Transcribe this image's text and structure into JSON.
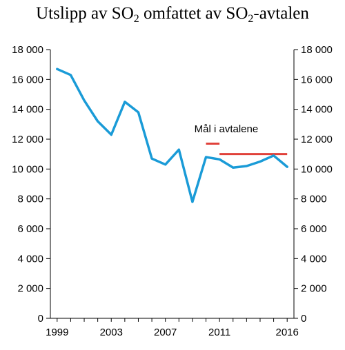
{
  "title": {
    "prefix": "Utslipp av SO",
    "sub1": "2",
    "middle": " omfattet av SO",
    "sub2": "2",
    "suffix": "-avtalen"
  },
  "chart_data": {
    "type": "line",
    "x": [
      1999,
      2000,
      2001,
      2002,
      2003,
      2004,
      2005,
      2006,
      2007,
      2008,
      2009,
      2010,
      2011,
      2012,
      2013,
      2014,
      2015,
      2016
    ],
    "series": [
      {
        "color": "#1a9bd7",
        "values": [
          16700,
          16300,
          14600,
          13200,
          12300,
          14500,
          13800,
          10700,
          10300,
          11300,
          7800,
          10800,
          10650,
          10100,
          10200,
          10500,
          10900,
          10150
        ]
      }
    ],
    "targets": [
      {
        "x_start": 2010,
        "x_end": 2011,
        "value": 11700,
        "color": "#e0413a"
      },
      {
        "x_start": 2011,
        "x_end": 2016,
        "value": 11000,
        "color": "#e0413a"
      }
    ],
    "annotation": "Mål i avtalene",
    "x_ticks": [
      1999,
      2003,
      2007,
      2011,
      2016
    ],
    "y_ticks": [
      0,
      2000,
      4000,
      6000,
      8000,
      10000,
      12000,
      14000,
      16000,
      18000
    ],
    "y_tick_labels": [
      "0",
      "2 000",
      "4 000",
      "6 000",
      "8 000",
      "10 000",
      "12 000",
      "14 000",
      "16 000",
      "18 000"
    ],
    "ylim": [
      0,
      18000
    ],
    "xlim": [
      1998.5,
      2016.5
    ],
    "grid": false,
    "right_axis": true
  }
}
